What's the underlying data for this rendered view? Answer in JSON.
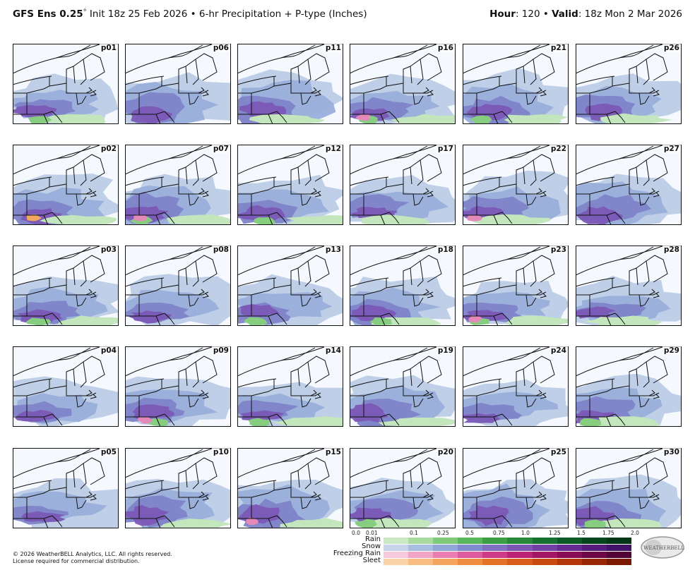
{
  "header": {
    "model": "GFS Ens 0.25",
    "degree": "°",
    "subtitle": " Init 18z 25 Feb 2026 • 6-hr Precipitation + P-type (Inches)",
    "hour_label": "Hour",
    "hour_value": ": 120 • ",
    "valid_label": "Valid",
    "valid_value": ": 18z Mon 2 Mar 2026"
  },
  "members": [
    [
      "p01",
      "p06",
      "p11",
      "p16",
      "p21",
      "p26"
    ],
    [
      "p02",
      "p07",
      "p12",
      "p17",
      "p22",
      "p27"
    ],
    [
      "p03",
      "p08",
      "p13",
      "p18",
      "p23",
      "p28"
    ],
    [
      "p04",
      "p09",
      "p14",
      "p19",
      "p24",
      "p29"
    ],
    [
      "p05",
      "p10",
      "p15",
      "p20",
      "p25",
      "p30"
    ]
  ],
  "legend": {
    "ticks": [
      "0.0",
      "0.01",
      "0.1",
      "0.25",
      "0.5",
      "0.75",
      "1.0",
      "1.25",
      "1.5",
      "1.75",
      "2.0"
    ],
    "rows": [
      {
        "label": "Rain",
        "colors": [
          "#cbe8c5",
          "#a9dba0",
          "#7fcb79",
          "#58b75a",
          "#3a9f45",
          "#27883a",
          "#17702f",
          "#0c5a25",
          "#06461d",
          "#033617"
        ]
      },
      {
        "label": "Snow",
        "colors": [
          "#c8d4ea",
          "#a8bde0",
          "#8fa6d6",
          "#7f8bce",
          "#8070c2",
          "#7b56b5",
          "#7240a4",
          "#652b92",
          "#551c7d",
          "#431268"
        ]
      },
      {
        "label": "Freezing Rain",
        "colors": [
          "#f6c9dd",
          "#f0a4c6",
          "#e87fb0",
          "#dd5a9c",
          "#cf3a88",
          "#bb2476",
          "#a31565",
          "#880c55",
          "#6c0745",
          "#520436"
        ]
      },
      {
        "label": "Sleet",
        "colors": [
          "#fbd3a8",
          "#f8bc80",
          "#f4a45d",
          "#ee8c3f",
          "#e57327",
          "#d85c17",
          "#c8480e",
          "#b23608",
          "#962604",
          "#7a1a02"
        ]
      }
    ]
  },
  "footer": {
    "copyright": "© 2026 WeatherBELL Analytics, LLC. All rights reserved.",
    "license": "License required for commercial distribution.",
    "logo_text": "WEATHERBELL"
  }
}
